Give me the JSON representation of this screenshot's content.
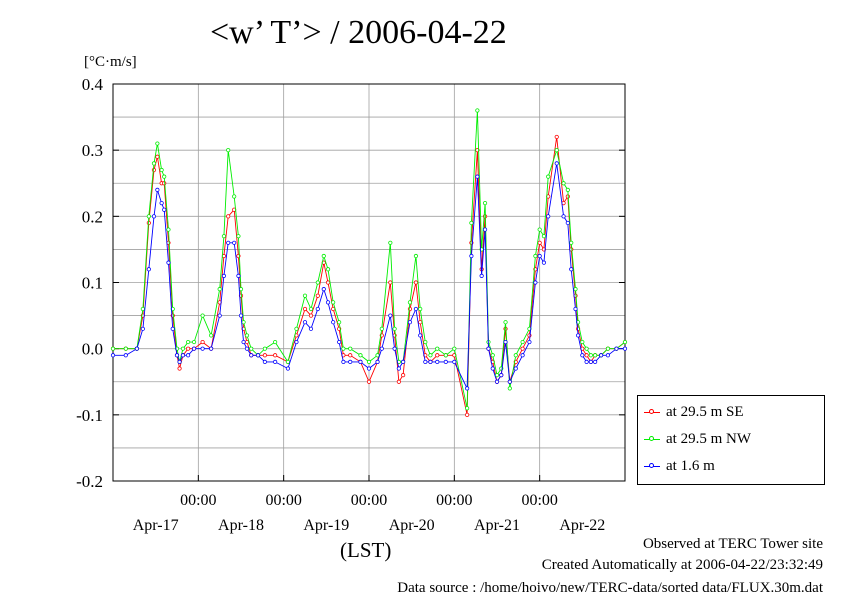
{
  "chart_data": {
    "type": "line",
    "title": "<w’ T’> / 2006-04-22",
    "ylabel": "[°C·m/s]",
    "xlabel": "(LST)",
    "ylim": [
      -0.2,
      0.4
    ],
    "xlim": [
      0,
      6
    ],
    "y_ticks": [
      "0.4",
      "0.3",
      "0.2",
      "0.1",
      "0.0",
      "-0.1",
      "-0.2"
    ],
    "y_tick_values": [
      0.4,
      0.3,
      0.2,
      0.1,
      0.0,
      -0.1,
      -0.2
    ],
    "x_time_ticks": [
      "00:00",
      "00:00",
      "00:00",
      "00:00",
      "00:00"
    ],
    "x_time_tick_values": [
      1,
      2,
      3,
      4,
      5
    ],
    "x_day_labels": [
      "Apr-17",
      "Apr-18",
      "Apr-19",
      "Apr-20",
      "Apr-21",
      "Apr-22"
    ],
    "x_day_values": [
      0.5,
      1.5,
      2.5,
      3.5,
      4.5,
      5.5
    ],
    "grid": true,
    "legend_position": "bottom-right outside",
    "series": [
      {
        "name": "at 29.5 m SE",
        "color": "#ff0000",
        "x": [
          0.0,
          0.15,
          0.28,
          0.35,
          0.42,
          0.48,
          0.52,
          0.57,
          0.6,
          0.65,
          0.7,
          0.75,
          0.78,
          0.82,
          0.88,
          0.95,
          1.05,
          1.15,
          1.25,
          1.3,
          1.35,
          1.42,
          1.47,
          1.5,
          1.53,
          1.57,
          1.62,
          1.7,
          1.78,
          1.9,
          2.05,
          2.15,
          2.25,
          2.32,
          2.4,
          2.47,
          2.52,
          2.58,
          2.65,
          2.7,
          2.78,
          2.9,
          3.0,
          3.1,
          3.15,
          3.25,
          3.3,
          3.35,
          3.4,
          3.48,
          3.55,
          3.6,
          3.66,
          3.72,
          3.8,
          3.9,
          4.0,
          4.15,
          4.2,
          4.27,
          4.32,
          4.36,
          4.4,
          4.45,
          4.5,
          4.55,
          4.6,
          4.65,
          4.72,
          4.8,
          4.88,
          4.95,
          5.0,
          5.05,
          5.1,
          5.2,
          5.28,
          5.33,
          5.37,
          5.42,
          5.45,
          5.5,
          5.55,
          5.6,
          5.65,
          5.72,
          5.8,
          5.9,
          6.0
        ],
        "values": [
          0.0,
          0.0,
          0.0,
          0.05,
          0.19,
          0.27,
          0.29,
          0.25,
          0.25,
          0.16,
          0.05,
          -0.01,
          -0.03,
          -0.01,
          0.0,
          0.0,
          0.01,
          0.0,
          0.07,
          0.14,
          0.2,
          0.21,
          0.14,
          0.08,
          0.03,
          0.01,
          -0.01,
          -0.01,
          -0.01,
          -0.01,
          -0.02,
          0.02,
          0.06,
          0.05,
          0.08,
          0.13,
          0.1,
          0.06,
          0.03,
          -0.01,
          -0.01,
          -0.02,
          -0.05,
          -0.02,
          0.02,
          0.1,
          0.02,
          -0.05,
          -0.04,
          0.06,
          0.1,
          0.04,
          -0.01,
          -0.02,
          -0.01,
          -0.01,
          -0.01,
          -0.1,
          0.16,
          0.3,
          0.12,
          0.2,
          0.0,
          -0.02,
          -0.05,
          -0.04,
          0.03,
          -0.05,
          -0.02,
          0.0,
          0.02,
          0.12,
          0.16,
          0.15,
          0.23,
          0.32,
          0.22,
          0.23,
          0.15,
          0.08,
          0.03,
          0.0,
          -0.01,
          -0.02,
          -0.01,
          -0.01,
          0.0,
          0.0,
          0.01
        ]
      },
      {
        "name": "at 29.5 m NW",
        "color": "#00ee00",
        "x": [
          0.0,
          0.15,
          0.28,
          0.35,
          0.42,
          0.48,
          0.52,
          0.57,
          0.6,
          0.65,
          0.7,
          0.75,
          0.78,
          0.82,
          0.88,
          0.95,
          1.05,
          1.15,
          1.25,
          1.3,
          1.35,
          1.42,
          1.47,
          1.5,
          1.53,
          1.57,
          1.62,
          1.7,
          1.78,
          1.9,
          2.05,
          2.15,
          2.25,
          2.32,
          2.4,
          2.47,
          2.52,
          2.58,
          2.65,
          2.7,
          2.78,
          2.9,
          3.0,
          3.1,
          3.15,
          3.25,
          3.3,
          3.35,
          3.4,
          3.48,
          3.55,
          3.6,
          3.66,
          3.72,
          3.8,
          3.9,
          4.0,
          4.15,
          4.2,
          4.27,
          4.32,
          4.36,
          4.4,
          4.45,
          4.5,
          4.55,
          4.6,
          4.65,
          4.72,
          4.8,
          4.88,
          4.95,
          5.0,
          5.05,
          5.1,
          5.2,
          5.28,
          5.33,
          5.37,
          5.42,
          5.45,
          5.5,
          5.55,
          5.6,
          5.65,
          5.72,
          5.8,
          5.9,
          6.0
        ],
        "values": [
          0.0,
          0.0,
          0.0,
          0.06,
          0.2,
          0.28,
          0.31,
          0.27,
          0.26,
          0.18,
          0.06,
          0.0,
          -0.02,
          0.0,
          0.01,
          0.01,
          0.05,
          0.02,
          0.09,
          0.17,
          0.3,
          0.23,
          0.17,
          0.09,
          0.04,
          0.02,
          0.0,
          -0.01,
          0.0,
          0.01,
          -0.02,
          0.03,
          0.08,
          0.06,
          0.1,
          0.14,
          0.12,
          0.07,
          0.04,
          0.0,
          0.0,
          -0.01,
          -0.02,
          -0.01,
          0.03,
          0.16,
          0.03,
          -0.02,
          -0.02,
          0.07,
          0.14,
          0.06,
          0.01,
          -0.01,
          0.0,
          -0.01,
          0.0,
          -0.09,
          0.19,
          0.36,
          0.15,
          0.22,
          0.01,
          -0.01,
          -0.04,
          -0.03,
          0.04,
          -0.06,
          -0.01,
          0.01,
          0.03,
          0.14,
          0.18,
          0.17,
          0.26,
          0.3,
          0.25,
          0.24,
          0.16,
          0.09,
          0.04,
          0.01,
          0.0,
          -0.01,
          -0.01,
          -0.01,
          0.0,
          0.0,
          0.01
        ]
      },
      {
        "name": "at 1.6 m",
        "color": "#0000ff",
        "x": [
          0.0,
          0.15,
          0.28,
          0.35,
          0.42,
          0.48,
          0.52,
          0.57,
          0.6,
          0.65,
          0.7,
          0.75,
          0.78,
          0.82,
          0.88,
          0.95,
          1.05,
          1.15,
          1.25,
          1.3,
          1.35,
          1.42,
          1.47,
          1.5,
          1.53,
          1.57,
          1.62,
          1.7,
          1.78,
          1.9,
          2.05,
          2.15,
          2.25,
          2.32,
          2.4,
          2.47,
          2.52,
          2.58,
          2.65,
          2.7,
          2.78,
          2.9,
          3.0,
          3.1,
          3.15,
          3.25,
          3.3,
          3.35,
          3.4,
          3.48,
          3.55,
          3.6,
          3.66,
          3.72,
          3.8,
          3.9,
          4.0,
          4.15,
          4.2,
          4.27,
          4.32,
          4.36,
          4.4,
          4.45,
          4.5,
          4.55,
          4.6,
          4.65,
          4.72,
          4.8,
          4.88,
          4.95,
          5.0,
          5.05,
          5.1,
          5.2,
          5.28,
          5.33,
          5.37,
          5.42,
          5.45,
          5.5,
          5.55,
          5.6,
          5.65,
          5.72,
          5.8,
          5.9,
          6.0
        ],
        "values": [
          -0.01,
          -0.01,
          0.0,
          0.03,
          0.12,
          0.2,
          0.24,
          0.22,
          0.21,
          0.13,
          0.03,
          -0.01,
          -0.02,
          -0.01,
          -0.01,
          0.0,
          0.0,
          0.0,
          0.05,
          0.11,
          0.16,
          0.16,
          0.11,
          0.05,
          0.01,
          0.0,
          -0.01,
          -0.01,
          -0.02,
          -0.02,
          -0.03,
          0.01,
          0.04,
          0.03,
          0.06,
          0.09,
          0.07,
          0.04,
          0.01,
          -0.02,
          -0.02,
          -0.02,
          -0.03,
          -0.02,
          0.0,
          0.05,
          0.0,
          -0.03,
          -0.02,
          0.04,
          0.06,
          0.02,
          -0.02,
          -0.02,
          -0.02,
          -0.02,
          -0.02,
          -0.06,
          0.14,
          0.26,
          0.11,
          0.18,
          0.0,
          -0.03,
          -0.05,
          -0.04,
          0.01,
          -0.05,
          -0.03,
          -0.01,
          0.01,
          0.1,
          0.14,
          0.13,
          0.2,
          0.28,
          0.2,
          0.19,
          0.12,
          0.06,
          0.02,
          -0.01,
          -0.02,
          -0.02,
          -0.02,
          -0.01,
          -0.01,
          0.0,
          0.0
        ]
      }
    ]
  },
  "footer": {
    "site": "Observed at TERC Tower site",
    "created": "Created Automatically at 2006-04-22/23:32:49",
    "source": "Data source : /home/hoivo/new/TERC-data/sorted  data/FLUX.30m.dat"
  }
}
